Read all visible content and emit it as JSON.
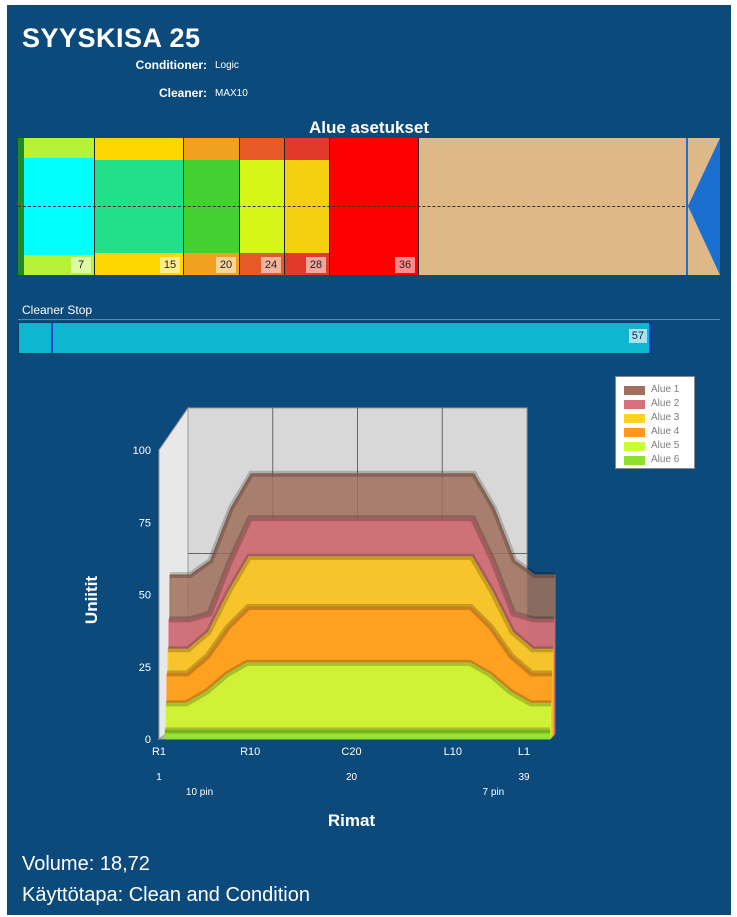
{
  "header": {
    "title": "SYYSKISA 25",
    "conditioner_label": "Conditioner:",
    "conditioner_value": "Logic",
    "cleaner_label": "Cleaner:",
    "cleaner_value": "MAX10"
  },
  "lane_settings": {
    "title": "Alue asetukset",
    "zones": [
      {
        "end": "7",
        "color": "#00ffff",
        "edge_color": "#b5f238"
      },
      {
        "end": "15",
        "color": "#22e08a",
        "edge_color": "#ffd700"
      },
      {
        "end": "20",
        "color": "#44d030",
        "edge_color": "#f2a020"
      },
      {
        "end": "24",
        "color": "#d6f518",
        "edge_color": "#e65a28"
      },
      {
        "end": "28",
        "color": "#f5d010",
        "edge_color": "#e03a2a"
      },
      {
        "end": "36",
        "color": "#ff0000",
        "edge_color": "#ff0000"
      }
    ],
    "lane_color": "#deb887",
    "pin_deck_color": "#1b6fd1"
  },
  "cleaner_stop": {
    "label": "Cleaner Stop",
    "value": "57",
    "bar_color": "#0fb6cf"
  },
  "chart_data": {
    "type": "area",
    "title": "",
    "ylabel": "Uniitit",
    "xlabel": "Rimat",
    "ylim": [
      0,
      100
    ],
    "y_ticks": [
      "0",
      "25",
      "50",
      "75",
      "100"
    ],
    "x_tick_labels": [
      "R1",
      "R10",
      "C20",
      "L10",
      "L1"
    ],
    "x_tick_numbers": [
      "1",
      "",
      "20",
      "",
      "39"
    ],
    "x_notes": {
      "left": "10 pin",
      "right": "7 pin"
    },
    "board_x": [
      1,
      3,
      5,
      7,
      9,
      11,
      20,
      29,
      31,
      33,
      35,
      37,
      39
    ],
    "series": [
      {
        "name": "Alue 1",
        "color": "#a0705c",
        "values": [
          55,
          55,
          60,
          78,
          90,
          90,
          90,
          90,
          90,
          78,
          60,
          55,
          55
        ]
      },
      {
        "name": "Alue 2",
        "color": "#d6707a",
        "values": [
          40,
          40,
          42,
          60,
          75,
          75,
          75,
          75,
          75,
          60,
          42,
          40,
          40
        ]
      },
      {
        "name": "Alue 3",
        "color": "#ffd21f",
        "values": [
          30,
          30,
          36,
          50,
          62,
          62,
          62,
          62,
          62,
          50,
          36,
          30,
          30
        ]
      },
      {
        "name": "Alue 4",
        "color": "#ff9a1f",
        "values": [
          22,
          22,
          28,
          38,
          45,
          45,
          45,
          45,
          45,
          38,
          28,
          22,
          22
        ]
      },
      {
        "name": "Alue 5",
        "color": "#c8ff3a",
        "values": [
          12,
          12,
          16,
          22,
          26,
          26,
          26,
          26,
          26,
          22,
          16,
          12,
          12
        ]
      },
      {
        "name": "Alue 6",
        "color": "#8ee02a",
        "values": [
          3,
          3,
          3,
          3,
          3,
          3,
          3,
          3,
          3,
          3,
          3,
          3,
          3
        ]
      }
    ],
    "legend": "top-right",
    "grid": true
  },
  "footer": {
    "volume": "Volume: 18,72",
    "mode": "Käyttötapa: Clean and Condition"
  }
}
